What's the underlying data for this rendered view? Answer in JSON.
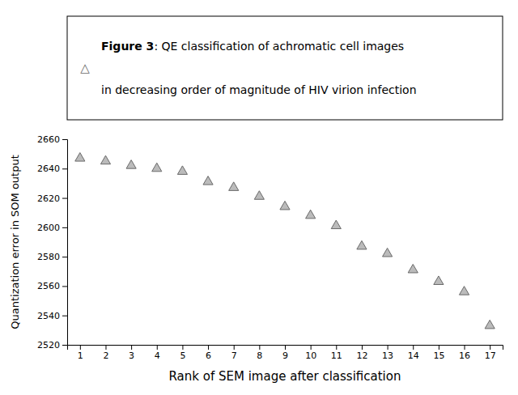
{
  "chart_data": {
    "type": "scatter",
    "x": [
      1,
      2,
      3,
      4,
      5,
      6,
      7,
      8,
      9,
      10,
      11,
      12,
      13,
      14,
      15,
      16,
      17
    ],
    "values": [
      2647,
      2645,
      2642,
      2640,
      2638,
      2631,
      2627,
      2621,
      2614,
      2608,
      2601,
      2587,
      2582,
      2571,
      2563,
      2556,
      2533
    ],
    "xlabel": "Rank of SEM image after classification",
    "ylabel": "Quantization error in SOM output",
    "xlim": [
      0.5,
      17.5
    ],
    "ylim": [
      2520,
      2660
    ],
    "xticks": [
      1,
      2,
      3,
      4,
      5,
      6,
      7,
      8,
      9,
      10,
      11,
      12,
      13,
      14,
      15,
      16,
      17
    ],
    "yticks": [
      2520,
      2540,
      2560,
      2580,
      2600,
      2620,
      2640,
      2660
    ],
    "marker": "triangle",
    "color": "#bbbbbb",
    "annotations": [
      "△",
      "Figure 3",
      ": QE classification of achromatic cell images",
      "in decreasing order of magnitude of HIV virion infection"
    ]
  }
}
